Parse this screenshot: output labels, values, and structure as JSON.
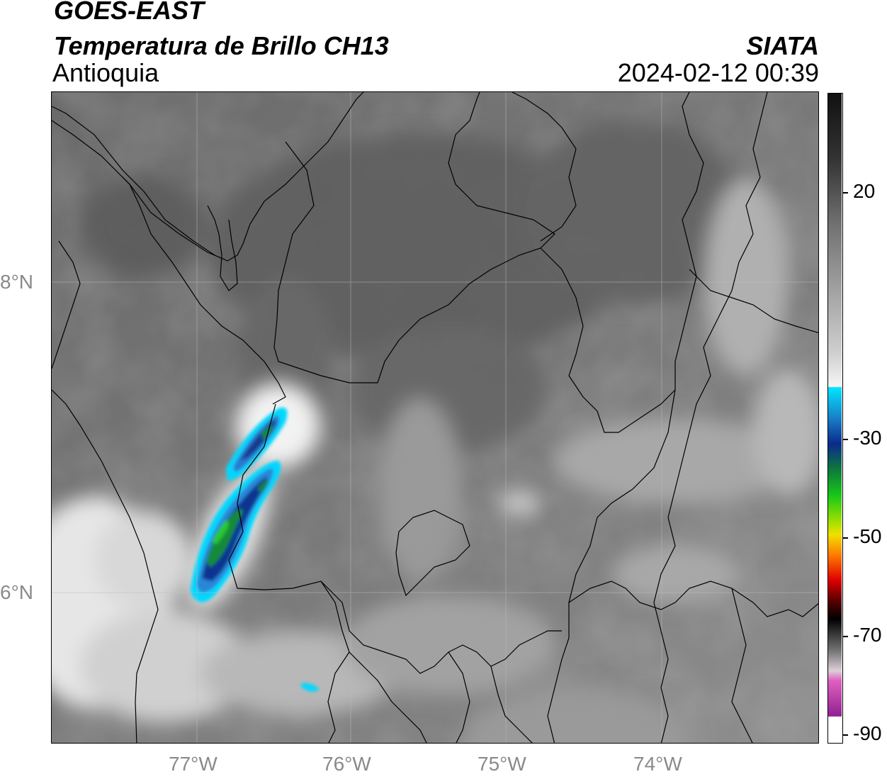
{
  "title": {
    "satellite": "GOES-EAST",
    "product": "Temperatura de Brillo CH13",
    "region": "Antioquia",
    "organization": "SIATA",
    "datetime": "2024-02-12 00:39"
  },
  "map": {
    "latitude_labels": [
      "8°N",
      "6°N"
    ],
    "longitude_labels": [
      "77°W",
      "76°W",
      "75°W",
      "74°W"
    ]
  },
  "colorbar": {
    "tick_labels": [
      "20",
      "-30",
      "-50",
      "-70",
      "-90"
    ],
    "colors": {
      "warm_dark": "#111111",
      "mid_gray": "#8c8c8c",
      "light": "#f5f5f5",
      "cyan": "#00e5ff",
      "blue": "#0a2a8c",
      "green": "#18c818",
      "yellow": "#f0e000",
      "orange": "#ff8000",
      "red": "#e00000",
      "black": "#000000",
      "pink": "#e060c0",
      "purple": "#902090"
    }
  }
}
